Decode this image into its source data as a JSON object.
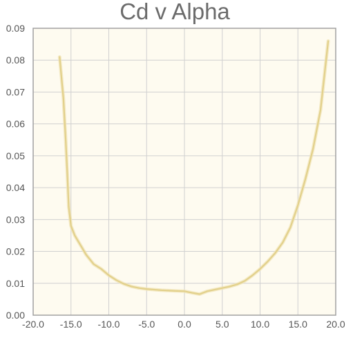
{
  "chart_data": {
    "type": "line",
    "title": "Cd v Alpha",
    "xlabel": "",
    "ylabel": "",
    "xlim": [
      -20,
      20
    ],
    "ylim": [
      0,
      0.09
    ],
    "grid": true,
    "x_ticks": [
      -20,
      -15,
      -10,
      -5,
      0,
      5,
      10,
      15,
      20
    ],
    "x_tick_labels": [
      "-20.0",
      "-15.0",
      "-10.0",
      "-5.0",
      "0.0",
      "5.0",
      "10.0",
      "15.0",
      "20.0"
    ],
    "y_ticks": [
      0,
      0.01,
      0.02,
      0.03,
      0.04,
      0.05,
      0.06,
      0.07,
      0.08,
      0.09
    ],
    "y_tick_labels": [
      "0.00",
      "0.01",
      "0.02",
      "0.03",
      "0.04",
      "0.05",
      "0.06",
      "0.07",
      "0.08",
      "0.09"
    ],
    "series": [
      {
        "color": "#e2d08a",
        "x": [
          -16.5,
          -16.0,
          -15.7,
          -15.5,
          -15.3,
          -15.0,
          -14.5,
          -14.0,
          -13.5,
          -13.0,
          -12.5,
          -12.0,
          -11.0,
          -10.0,
          -9.0,
          -8.0,
          -7.0,
          -6.0,
          -5.0,
          -4.0,
          -3.0,
          -2.0,
          -1.0,
          0.0,
          1.0,
          2.0,
          3.0,
          4.0,
          5.0,
          6.0,
          7.0,
          8.0,
          9.0,
          10.0,
          11.0,
          12.0,
          13.0,
          14.0,
          15.0,
          16.0,
          17.0,
          18.0,
          19.0
        ],
        "y": [
          0.081,
          0.068,
          0.055,
          0.045,
          0.034,
          0.028,
          0.025,
          0.023,
          0.021,
          0.019,
          0.0175,
          0.016,
          0.0145,
          0.0125,
          0.011,
          0.0098,
          0.009,
          0.0085,
          0.0082,
          0.008,
          0.0078,
          0.0077,
          0.0076,
          0.0075,
          0.007,
          0.0066,
          0.0075,
          0.008,
          0.0085,
          0.009,
          0.0097,
          0.0108,
          0.0125,
          0.0145,
          0.0168,
          0.0195,
          0.0228,
          0.0275,
          0.0345,
          0.0428,
          0.0522,
          0.0645,
          0.086
        ]
      }
    ]
  },
  "colors": {
    "plot_background": "#fefbf0",
    "line": "#e2d08a",
    "line_glow": "#efe3b3",
    "grid": "#d0d0d0",
    "frame": "#a0a0a0",
    "title": "#6b6b6b",
    "tick_text": "#555555"
  }
}
